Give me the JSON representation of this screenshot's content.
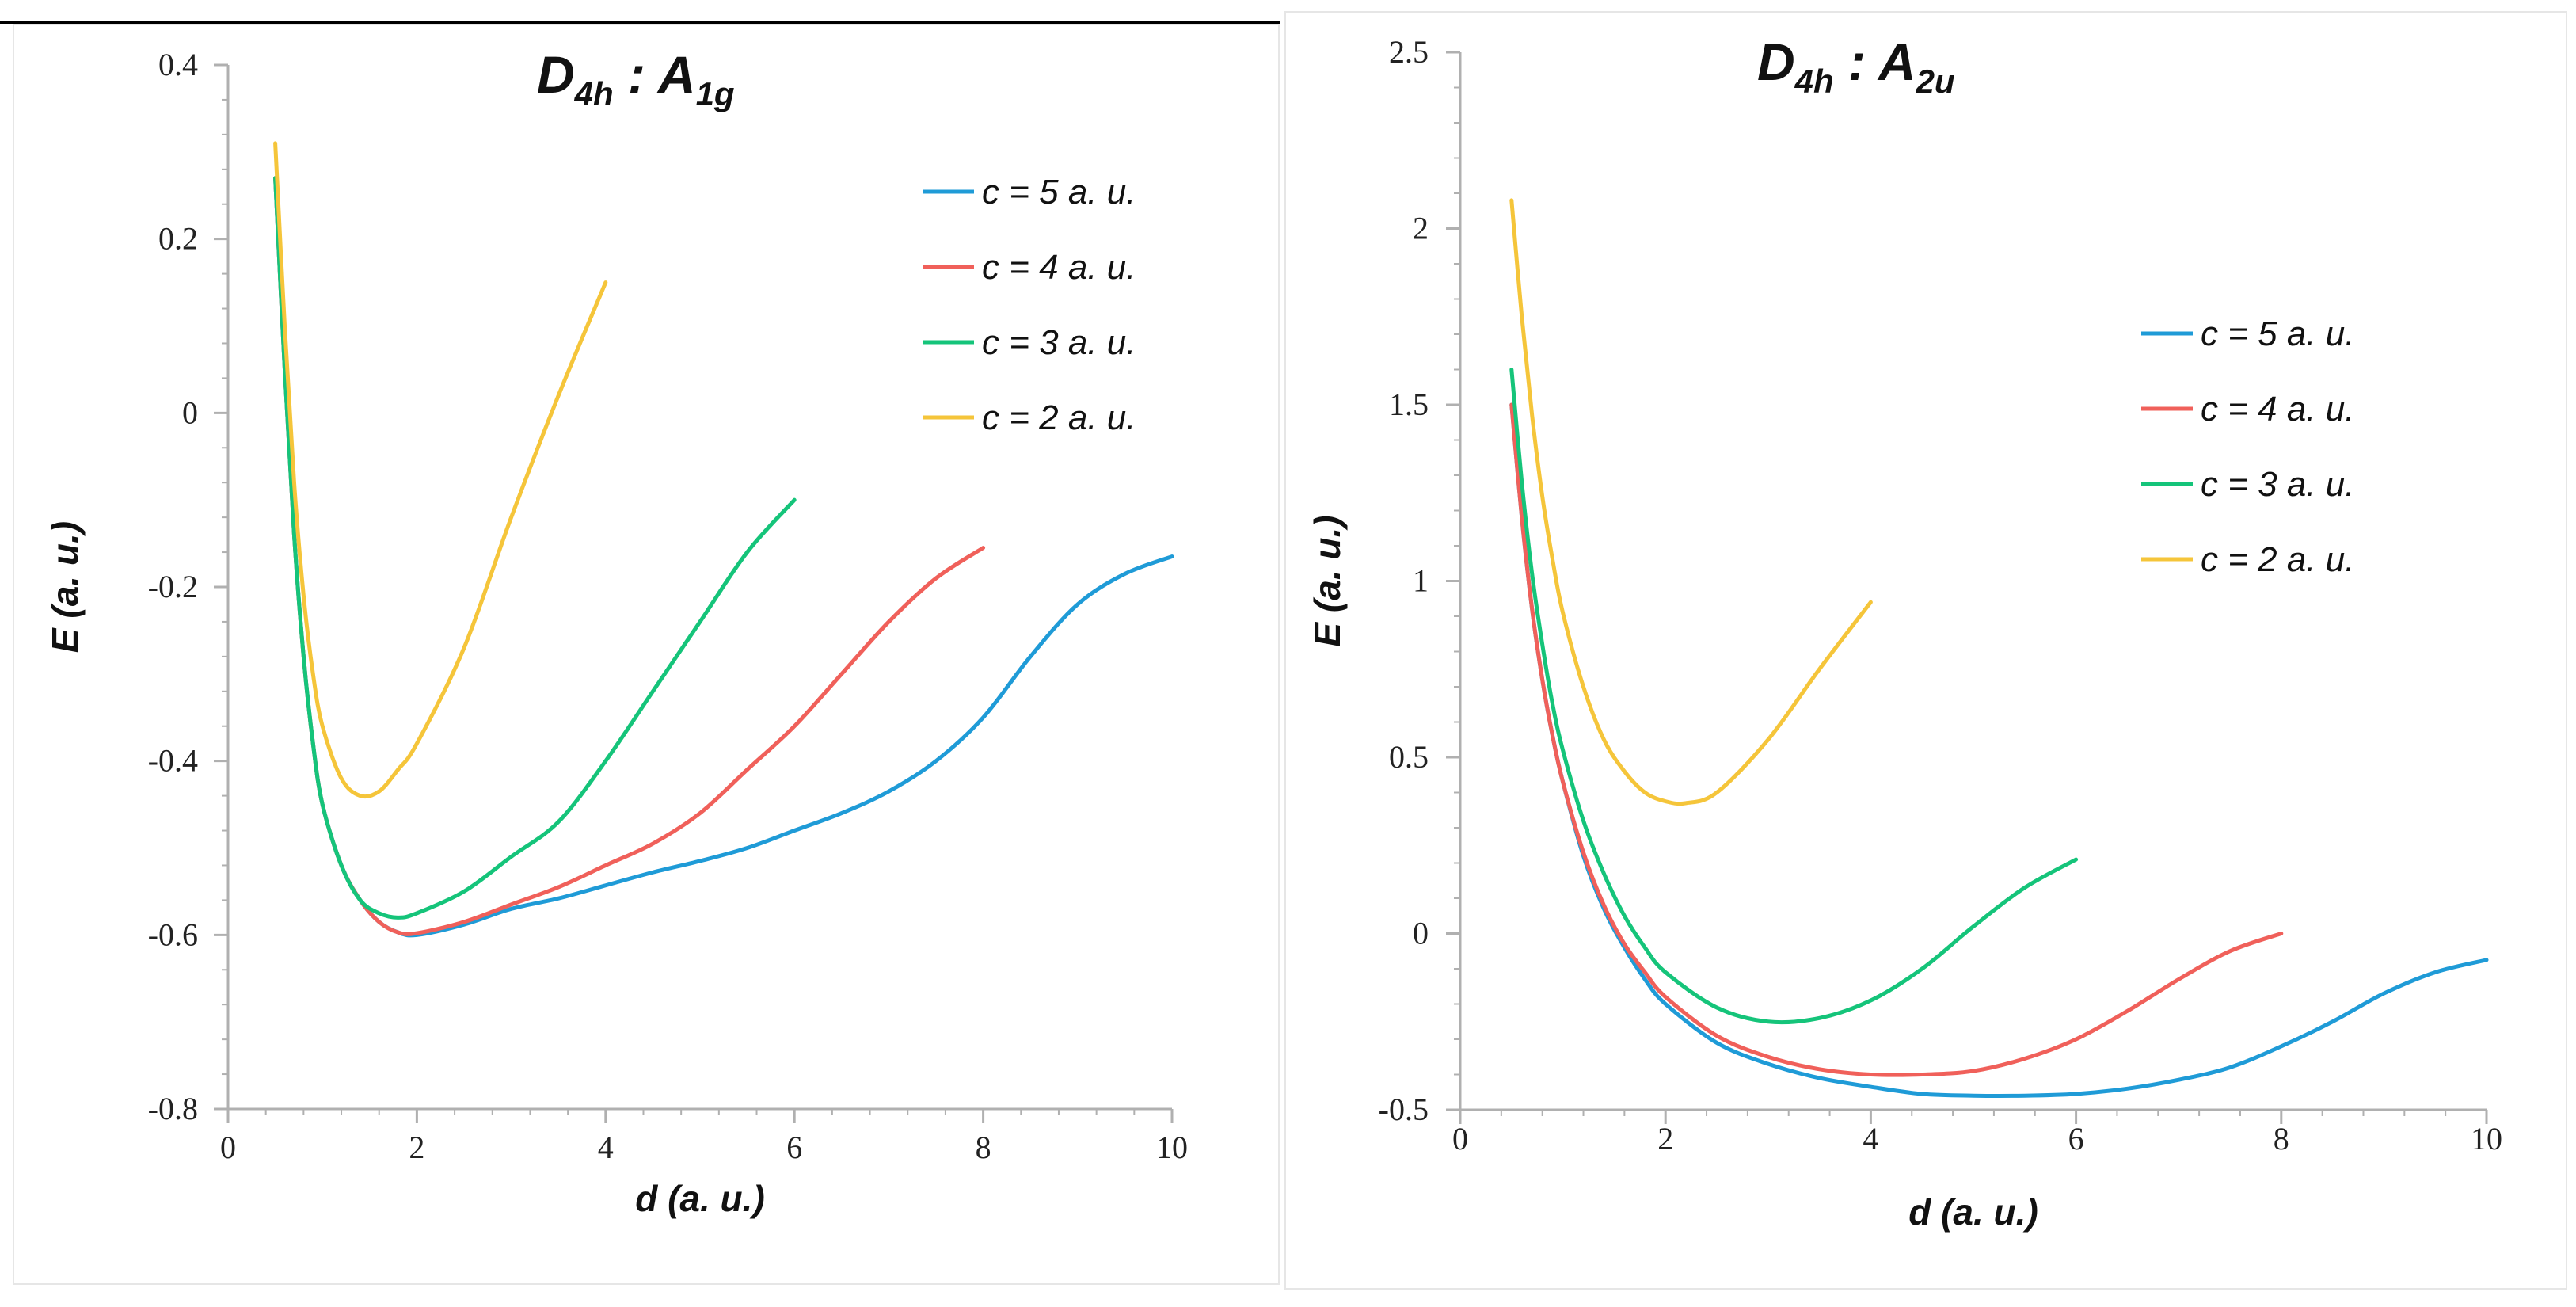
{
  "chart_data": [
    {
      "type": "line",
      "title": "D4h : A1g",
      "title_main": "D",
      "title_sub": "4h",
      "title_sep": " : A",
      "title_sub2": "1g",
      "xlabel": "d (a. u.)",
      "ylabel": "E (a. u.)",
      "xlim": [
        0,
        10
      ],
      "ylim": [
        -0.8,
        0.4
      ],
      "xticks": [
        0,
        2,
        4,
        6,
        8,
        10
      ],
      "yticks": [
        0.4,
        0.2,
        0,
        -0.2,
        -0.4,
        -0.6,
        -0.8
      ],
      "xtick_labels": [
        "0",
        "2",
        "4",
        "6",
        "8",
        "10"
      ],
      "ytick_labels": [
        "0.4",
        "0.2",
        "0",
        "-0.2",
        "-0.4",
        "-0.6",
        "-0.8"
      ],
      "grid": false,
      "legend_position": "top-right",
      "series": [
        {
          "name": "c = 5 a. u.",
          "color": "#1f9bd7",
          "x": [
            0.5,
            0.6,
            0.7,
            0.8,
            0.9,
            1.0,
            1.2,
            1.4,
            1.6,
            1.8,
            2.0,
            2.5,
            3.0,
            3.5,
            4.0,
            4.5,
            5.0,
            5.5,
            6.0,
            6.5,
            7.0,
            7.5,
            8.0,
            8.5,
            9.0,
            9.5,
            10.0
          ],
          "y": [
            0.27,
            0.05,
            -0.14,
            -0.28,
            -0.38,
            -0.45,
            -0.52,
            -0.56,
            -0.585,
            -0.597,
            -0.6,
            -0.588,
            -0.57,
            -0.558,
            -0.543,
            -0.528,
            -0.515,
            -0.5,
            -0.48,
            -0.46,
            -0.435,
            -0.4,
            -0.35,
            -0.28,
            -0.22,
            -0.185,
            -0.165
          ]
        },
        {
          "name": "c = 4 a. u.",
          "color": "#f0605a",
          "x": [
            0.5,
            0.6,
            0.7,
            0.8,
            0.9,
            1.0,
            1.2,
            1.4,
            1.6,
            1.8,
            2.0,
            2.5,
            3.0,
            3.5,
            4.0,
            4.5,
            5.0,
            5.5,
            6.0,
            6.5,
            7.0,
            7.5,
            8.0
          ],
          "y": [
            0.27,
            0.05,
            -0.14,
            -0.28,
            -0.38,
            -0.45,
            -0.52,
            -0.56,
            -0.585,
            -0.597,
            -0.598,
            -0.585,
            -0.565,
            -0.545,
            -0.52,
            -0.495,
            -0.46,
            -0.41,
            -0.36,
            -0.3,
            -0.24,
            -0.19,
            -0.155
          ]
        },
        {
          "name": "c = 3 a. u.",
          "color": "#15c47a",
          "x": [
            0.5,
            0.6,
            0.7,
            0.8,
            0.9,
            1.0,
            1.2,
            1.4,
            1.6,
            1.8,
            2.0,
            2.5,
            3.0,
            3.5,
            4.0,
            4.5,
            5.0,
            5.5,
            6.0
          ],
          "y": [
            0.27,
            0.05,
            -0.14,
            -0.28,
            -0.38,
            -0.45,
            -0.52,
            -0.56,
            -0.575,
            -0.58,
            -0.575,
            -0.55,
            -0.51,
            -0.47,
            -0.4,
            -0.32,
            -0.24,
            -0.16,
            -0.1
          ]
        },
        {
          "name": "c = 2 a. u.",
          "color": "#f5c53a",
          "x": [
            0.5,
            0.6,
            0.7,
            0.8,
            0.9,
            1.0,
            1.2,
            1.4,
            1.6,
            1.8,
            2.0,
            2.5,
            3.0,
            3.5,
            4.0
          ],
          "y": [
            0.31,
            0.1,
            -0.08,
            -0.21,
            -0.3,
            -0.36,
            -0.42,
            -0.44,
            -0.435,
            -0.41,
            -0.38,
            -0.27,
            -0.12,
            0.02,
            0.15
          ]
        }
      ]
    },
    {
      "type": "line",
      "title": "D4h : A2u",
      "title_main": "D",
      "title_sub": "4h",
      "title_sep": " : A",
      "title_sub2": "2u",
      "xlabel": "d (a. u.)",
      "ylabel": "E (a. u.)",
      "xlim": [
        0,
        10
      ],
      "ylim": [
        -0.5,
        2.5
      ],
      "xticks": [
        0,
        2,
        4,
        6,
        8,
        10
      ],
      "yticks": [
        2.5,
        2,
        1.5,
        1,
        0.5,
        0,
        -0.5
      ],
      "xtick_labels": [
        "0",
        "2",
        "4",
        "6",
        "8",
        "10"
      ],
      "ytick_labels": [
        "2.5",
        "2",
        "1.5",
        "1",
        "0.5",
        "0",
        "-0.5"
      ],
      "grid": false,
      "legend_position": "top-right",
      "series": [
        {
          "name": "c = 5 a. u.",
          "color": "#1f9bd7",
          "x": [
            0.5,
            0.6,
            0.7,
            0.8,
            0.9,
            1.0,
            1.2,
            1.4,
            1.6,
            1.8,
            2.0,
            2.5,
            3.0,
            3.5,
            4.0,
            4.5,
            5.0,
            5.5,
            6.0,
            6.5,
            7.0,
            7.5,
            8.0,
            8.5,
            9.0,
            9.5,
            10.0
          ],
          "y": [
            1.5,
            1.18,
            0.92,
            0.72,
            0.56,
            0.43,
            0.22,
            0.07,
            -0.04,
            -0.13,
            -0.2,
            -0.31,
            -0.37,
            -0.41,
            -0.435,
            -0.455,
            -0.46,
            -0.46,
            -0.455,
            -0.44,
            -0.415,
            -0.38,
            -0.32,
            -0.25,
            -0.17,
            -0.11,
            -0.075
          ]
        },
        {
          "name": "c = 4 a. u.",
          "color": "#f0605a",
          "x": [
            0.5,
            0.6,
            0.7,
            0.8,
            0.9,
            1.0,
            1.2,
            1.4,
            1.6,
            1.8,
            2.0,
            2.5,
            3.0,
            3.5,
            4.0,
            4.5,
            5.0,
            5.5,
            6.0,
            6.5,
            7.0,
            7.5,
            8.0
          ],
          "y": [
            1.5,
            1.18,
            0.92,
            0.72,
            0.56,
            0.43,
            0.23,
            0.08,
            -0.03,
            -0.11,
            -0.18,
            -0.29,
            -0.35,
            -0.385,
            -0.4,
            -0.4,
            -0.39,
            -0.355,
            -0.3,
            -0.22,
            -0.13,
            -0.05,
            0.0
          ]
        },
        {
          "name": "c = 3 a. u.",
          "color": "#15c47a",
          "x": [
            0.5,
            0.6,
            0.7,
            0.8,
            0.9,
            1.0,
            1.2,
            1.4,
            1.6,
            1.8,
            2.0,
            2.5,
            3.0,
            3.5,
            4.0,
            4.5,
            5.0,
            5.5,
            6.0
          ],
          "y": [
            1.6,
            1.28,
            1.02,
            0.82,
            0.65,
            0.52,
            0.32,
            0.17,
            0.05,
            -0.04,
            -0.11,
            -0.21,
            -0.25,
            -0.24,
            -0.19,
            -0.1,
            0.02,
            0.13,
            0.21
          ]
        },
        {
          "name": "c = 2 a. u.",
          "color": "#f5c53a",
          "x": [
            0.5,
            0.6,
            0.7,
            0.8,
            0.9,
            1.0,
            1.2,
            1.4,
            1.6,
            1.8,
            2.0,
            2.2,
            2.5,
            3.0,
            3.5,
            4.0
          ],
          "y": [
            2.08,
            1.75,
            1.47,
            1.24,
            1.06,
            0.91,
            0.7,
            0.55,
            0.46,
            0.4,
            0.375,
            0.37,
            0.4,
            0.55,
            0.75,
            0.94
          ]
        }
      ]
    }
  ]
}
